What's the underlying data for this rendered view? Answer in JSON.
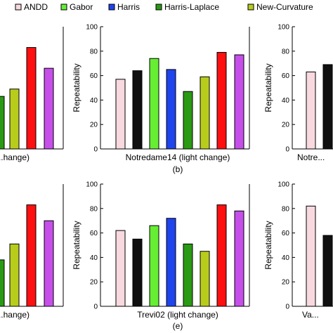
{
  "legend": {
    "items": [
      {
        "label": "ANDD",
        "color": "#f8d9df"
      },
      {
        "label": "Gabor",
        "color": "#66ee33"
      },
      {
        "label": "Harris",
        "color": "#1f44ee"
      },
      {
        "label": "Harris-Laplace",
        "color": "#2a9a14"
      },
      {
        "label": "New-Curvature",
        "color": "#b8cc1c"
      }
    ]
  },
  "chart_data": [
    {
      "type": "bar",
      "panel": "top-left",
      "xlabel": "...hange)",
      "panel_label": "",
      "categories": [
        "Harris-Laplace",
        "New-Curvature",
        "red",
        "purple"
      ],
      "values": [
        43,
        49,
        83,
        66
      ],
      "colors": [
        "#2a9a14",
        "#b8cc1c",
        "#ff1010",
        "#c64fea"
      ],
      "ylim": [
        0,
        100
      ],
      "yticks": [],
      "ylabel": ""
    },
    {
      "type": "bar",
      "panel": "top-middle",
      "xlabel": "Notredame14 (light change)",
      "panel_label": "(b)",
      "ylabel": "Repeatability",
      "categories": [
        "ANDD",
        "black",
        "Gabor",
        "Harris",
        "Harris-Laplace",
        "New-Curvature",
        "red",
        "purple"
      ],
      "values": [
        57,
        64,
        74,
        65,
        47,
        59,
        79,
        77
      ],
      "colors": [
        "#f8d9df",
        "#101010",
        "#66ee33",
        "#1f44ee",
        "#2a9a14",
        "#b8cc1c",
        "#ff1010",
        "#c64fea"
      ],
      "ylim": [
        0,
        100
      ],
      "yticks": [
        "0",
        "20",
        "40",
        "60",
        "80",
        "100"
      ]
    },
    {
      "type": "bar",
      "panel": "top-right",
      "xlabel": "Notre...",
      "panel_label": "",
      "ylabel": "Repeatability",
      "categories": [
        "ANDD",
        "black"
      ],
      "values": [
        63,
        69
      ],
      "colors": [
        "#f8d9df",
        "#101010"
      ],
      "ylim": [
        0,
        100
      ],
      "yticks": [
        "0",
        "20",
        "40",
        "60",
        "80",
        "100"
      ]
    },
    {
      "type": "bar",
      "panel": "bottom-left",
      "xlabel": "...hange)",
      "panel_label": "",
      "categories": [
        "Harris-Laplace",
        "New-Curvature",
        "red",
        "purple"
      ],
      "values": [
        38,
        51,
        83,
        70
      ],
      "colors": [
        "#2a9a14",
        "#b8cc1c",
        "#ff1010",
        "#c64fea"
      ],
      "ylim": [
        0,
        100
      ],
      "yticks": [],
      "ylabel": ""
    },
    {
      "type": "bar",
      "panel": "bottom-middle",
      "xlabel": "Trevi02 (light change)",
      "panel_label": "(e)",
      "ylabel": "Repeatability",
      "categories": [
        "ANDD",
        "black",
        "Gabor",
        "Harris",
        "Harris-Laplace",
        "New-Curvature",
        "red",
        "purple"
      ],
      "values": [
        62,
        55,
        66,
        72,
        51,
        45,
        83,
        78
      ],
      "colors": [
        "#f8d9df",
        "#101010",
        "#66ee33",
        "#1f44ee",
        "#2a9a14",
        "#b8cc1c",
        "#ff1010",
        "#c64fea"
      ],
      "ylim": [
        0,
        100
      ],
      "yticks": [
        "0",
        "20",
        "40",
        "60",
        "80",
        "100"
      ]
    },
    {
      "type": "bar",
      "panel": "bottom-right",
      "xlabel": "Va...",
      "panel_label": "",
      "ylabel": "Repeatability",
      "categories": [
        "ANDD",
        "black"
      ],
      "values": [
        82,
        58
      ],
      "colors": [
        "#f8d9df",
        "#101010"
      ],
      "ylim": [
        0,
        100
      ],
      "yticks": [
        "0",
        "20",
        "40",
        "60",
        "80",
        "100"
      ]
    }
  ]
}
